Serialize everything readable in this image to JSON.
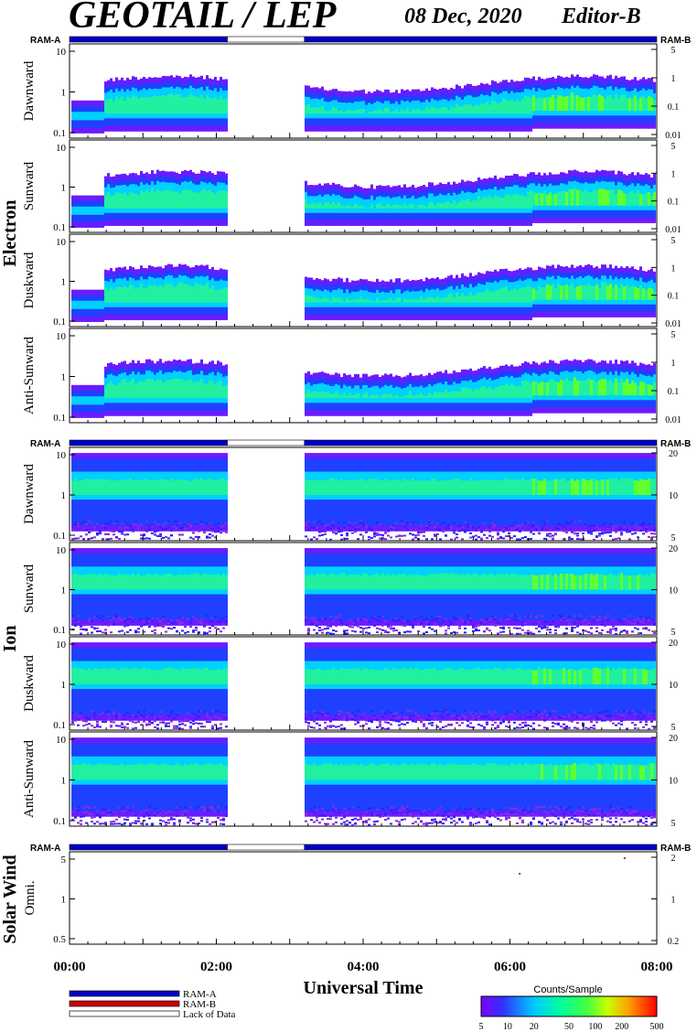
{
  "header": {
    "title": "GEOTAIL / LEP",
    "date": "08 Dec, 2020",
    "editor": "Editor-B"
  },
  "ram_labels": {
    "a": "RAM-A",
    "b": "RAM-B"
  },
  "groups": [
    {
      "name": "Electron",
      "panels": [
        "Dawnward",
        "Sunward",
        "Duskward",
        "Anti-Sunward"
      ],
      "left_ticks": [
        "10",
        "1",
        "0.1"
      ],
      "right_ticks": [
        "5",
        "1",
        "0.1",
        "0.01"
      ]
    },
    {
      "name": "Ion",
      "panels": [
        "Dawnward",
        "Sunward",
        "Duskward",
        "Anti-Sunward"
      ],
      "left_ticks": [
        "10",
        "1",
        "0.1"
      ],
      "right_ticks": [
        "20",
        "10",
        "5"
      ]
    },
    {
      "name": "Solar Wind",
      "panels": [
        "Omni."
      ],
      "left_ticks": [
        "5",
        "1",
        "0.5"
      ],
      "right_ticks": [
        "2",
        "1",
        "0.2"
      ]
    }
  ],
  "x_axis": {
    "label": "Universal Time",
    "ticks": [
      "00:00",
      "02:00",
      "04:00",
      "06:00",
      "08:00"
    ],
    "range_hours": [
      0,
      8
    ]
  },
  "legend": {
    "items": [
      {
        "label": "RAM-A",
        "color": "#0000cc"
      },
      {
        "label": "RAM-B",
        "color": "#cc0000"
      },
      {
        "label": "Lack of Data",
        "color": "#ffffff"
      }
    ]
  },
  "colorbar": {
    "title": "Counts/Sample",
    "ticks": [
      "5",
      "10",
      "20",
      "50",
      "100",
      "200",
      "500"
    ]
  },
  "colors": {
    "ram_a": "#0000cc",
    "ram_b": "#cc0000"
  },
  "chart_data": {
    "type": "heatmap",
    "title": "GEOTAIL / LEP",
    "xlabel": "Universal Time",
    "x_range_hours": [
      0,
      8
    ],
    "data_gap_hours": [
      2.15,
      3.2
    ],
    "ram_status": [
      {
        "mode": "RAM-A",
        "from": 0,
        "to": 2.15
      },
      {
        "mode": "Lack of Data",
        "from": 2.15,
        "to": 3.2
      },
      {
        "mode": "RAM-A",
        "from": 3.2,
        "to": 8
      }
    ],
    "color_scale_counts": [
      5,
      500
    ]
  }
}
